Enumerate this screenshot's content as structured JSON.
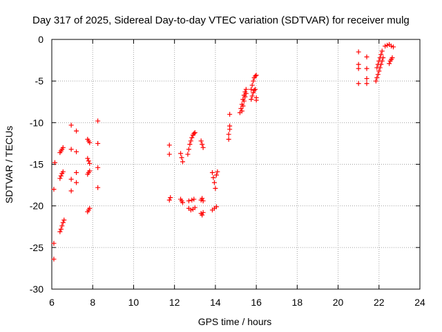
{
  "chart_data": {
    "type": "scatter",
    "title": "Day 317 of 2025, Sidereal Day-to-day VTEC variation (SDTVAR) for receiver mulg",
    "xlabel": "GPS time / hours",
    "ylabel": "SDTVAR / TECUs",
    "xlim": [
      6,
      24
    ],
    "ylim": [
      -30,
      0
    ],
    "xticks": [
      6,
      8,
      10,
      12,
      14,
      16,
      18,
      20,
      22,
      24
    ],
    "yticks": [
      0,
      -5,
      -10,
      -15,
      -20,
      -25,
      -30
    ],
    "xtick_labels": [
      "6",
      "8",
      "10",
      "12",
      "14",
      "16",
      "18",
      "20",
      "22",
      "24"
    ],
    "ytick_labels": [
      "0",
      "-5",
      "-10",
      "-15",
      "-20",
      "-25",
      "-30"
    ],
    "grid": true,
    "marker": "plus",
    "color": "#ff0000",
    "points": [
      [
        6.1,
        -26.4
      ],
      [
        6.1,
        -24.5
      ],
      [
        6.1,
        -18.0
      ],
      [
        6.15,
        -14.8
      ],
      [
        6.4,
        -23.1
      ],
      [
        6.45,
        -22.8
      ],
      [
        6.5,
        -22.4
      ],
      [
        6.55,
        -22.0
      ],
      [
        6.6,
        -21.7
      ],
      [
        6.4,
        -16.7
      ],
      [
        6.45,
        -16.4
      ],
      [
        6.5,
        -16.1
      ],
      [
        6.55,
        -15.9
      ],
      [
        6.4,
        -13.6
      ],
      [
        6.45,
        -13.4
      ],
      [
        6.5,
        -13.2
      ],
      [
        6.55,
        -13.0
      ],
      [
        6.95,
        -10.3
      ],
      [
        6.95,
        -13.2
      ],
      [
        6.95,
        -16.8
      ],
      [
        6.95,
        -18.2
      ],
      [
        7.2,
        -11.0
      ],
      [
        7.2,
        -13.5
      ],
      [
        7.2,
        -16.0
      ],
      [
        7.2,
        -17.2
      ],
      [
        7.75,
        -12.0
      ],
      [
        7.8,
        -12.2
      ],
      [
        7.85,
        -12.4
      ],
      [
        7.75,
        -14.3
      ],
      [
        7.8,
        -14.6
      ],
      [
        7.85,
        -14.9
      ],
      [
        7.75,
        -16.2
      ],
      [
        7.8,
        -16.0
      ],
      [
        7.85,
        -15.8
      ],
      [
        7.75,
        -20.7
      ],
      [
        7.8,
        -20.5
      ],
      [
        7.85,
        -20.3
      ],
      [
        8.25,
        -9.8
      ],
      [
        8.25,
        -12.5
      ],
      [
        8.25,
        -15.4
      ],
      [
        8.25,
        -17.8
      ],
      [
        11.75,
        -12.7
      ],
      [
        11.75,
        -13.8
      ],
      [
        11.75,
        -19.3
      ],
      [
        11.8,
        -19.0
      ],
      [
        12.3,
        -13.7
      ],
      [
        12.35,
        -14.2
      ],
      [
        12.4,
        -14.7
      ],
      [
        12.3,
        -19.2
      ],
      [
        12.35,
        -19.4
      ],
      [
        12.4,
        -19.6
      ],
      [
        12.65,
        -13.8
      ],
      [
        12.7,
        -13.2
      ],
      [
        12.75,
        -12.6
      ],
      [
        12.8,
        -12.2
      ],
      [
        12.85,
        -11.8
      ],
      [
        12.9,
        -11.5
      ],
      [
        12.95,
        -11.3
      ],
      [
        13.0,
        -11.2
      ],
      [
        12.7,
        -20.3
      ],
      [
        12.8,
        -20.5
      ],
      [
        12.9,
        -20.4
      ],
      [
        13.0,
        -20.2
      ],
      [
        12.7,
        -19.4
      ],
      [
        12.85,
        -19.3
      ],
      [
        12.95,
        -19.2
      ],
      [
        13.3,
        -12.2
      ],
      [
        13.35,
        -12.6
      ],
      [
        13.4,
        -13.0
      ],
      [
        13.3,
        -19.3
      ],
      [
        13.35,
        -19.1
      ],
      [
        13.4,
        -19.4
      ],
      [
        13.3,
        -20.9
      ],
      [
        13.35,
        -21.1
      ],
      [
        13.4,
        -20.8
      ],
      [
        13.85,
        -20.5
      ],
      [
        13.95,
        -20.3
      ],
      [
        14.05,
        -20.1
      ],
      [
        13.85,
        -16.0
      ],
      [
        13.9,
        -16.6
      ],
      [
        13.95,
        -17.2
      ],
      [
        14.0,
        -17.9
      ],
      [
        14.05,
        -16.3
      ],
      [
        14.1,
        -15.9
      ],
      [
        14.65,
        -12.0
      ],
      [
        14.65,
        -11.4
      ],
      [
        14.7,
        -10.8
      ],
      [
        14.7,
        -10.4
      ],
      [
        14.7,
        -9.0
      ],
      [
        15.2,
        -8.8
      ],
      [
        15.25,
        -8.3
      ],
      [
        15.3,
        -7.8
      ],
      [
        15.35,
        -7.2
      ],
      [
        15.4,
        -6.7
      ],
      [
        15.45,
        -6.3
      ],
      [
        15.5,
        -6.0
      ],
      [
        15.3,
        -8.6
      ],
      [
        15.35,
        -8.0
      ],
      [
        15.4,
        -7.4
      ],
      [
        15.45,
        -6.9
      ],
      [
        15.5,
        -6.5
      ],
      [
        15.75,
        -6.0
      ],
      [
        15.8,
        -5.5
      ],
      [
        15.85,
        -5.0
      ],
      [
        15.9,
        -4.6
      ],
      [
        15.95,
        -4.4
      ],
      [
        16.0,
        -4.3
      ],
      [
        15.75,
        -7.2
      ],
      [
        15.8,
        -6.8
      ],
      [
        15.85,
        -6.4
      ],
      [
        15.9,
        -6.1
      ],
      [
        15.95,
        -6.0
      ],
      [
        16.0,
        -7.0
      ],
      [
        16.0,
        -7.3
      ],
      [
        21.0,
        -1.5
      ],
      [
        21.0,
        -3.0
      ],
      [
        21.0,
        -3.5
      ],
      [
        21.0,
        -5.3
      ],
      [
        21.4,
        -2.1
      ],
      [
        21.4,
        -3.5
      ],
      [
        21.4,
        -4.7
      ],
      [
        21.4,
        -5.3
      ],
      [
        21.85,
        -5.0
      ],
      [
        21.9,
        -4.6
      ],
      [
        21.95,
        -4.2
      ],
      [
        22.0,
        -3.8
      ],
      [
        22.05,
        -3.4
      ],
      [
        22.1,
        -3.0
      ],
      [
        22.15,
        -2.6
      ],
      [
        22.2,
        -2.2
      ],
      [
        21.9,
        -3.4
      ],
      [
        21.95,
        -3.0
      ],
      [
        22.0,
        -2.6
      ],
      [
        22.05,
        -2.2
      ],
      [
        22.1,
        -1.8
      ],
      [
        22.15,
        -1.4
      ],
      [
        22.3,
        -0.8
      ],
      [
        22.4,
        -0.7
      ],
      [
        22.5,
        -0.6
      ],
      [
        22.6,
        -0.8
      ],
      [
        22.7,
        -0.9
      ],
      [
        22.5,
        -2.9
      ],
      [
        22.55,
        -2.6
      ],
      [
        22.6,
        -2.4
      ],
      [
        22.65,
        -2.2
      ]
    ]
  }
}
